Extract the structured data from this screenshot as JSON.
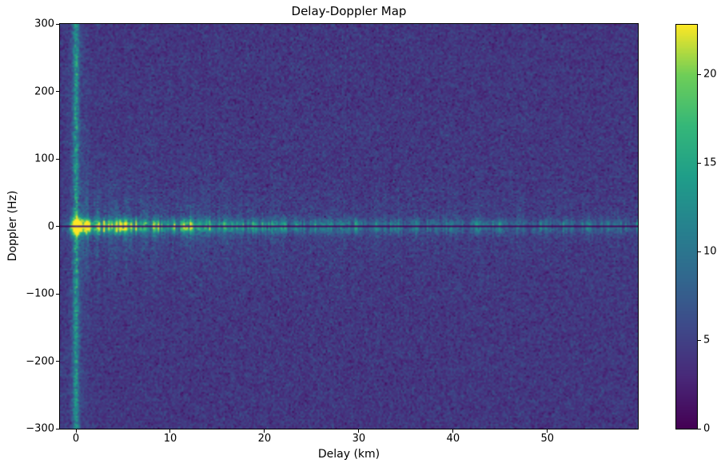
{
  "chart_data": {
    "type": "heatmap",
    "title": "Delay-Doppler Map",
    "xlabel": "Delay (km)",
    "ylabel": "Doppler (Hz)",
    "x_range": [
      -1.7,
      59.6
    ],
    "y_range": [
      -300,
      300
    ],
    "x_ticks": [
      0,
      10,
      20,
      30,
      40,
      50
    ],
    "y_ticks": [
      300,
      200,
      100,
      0,
      -100,
      -200,
      -300
    ],
    "grid": false,
    "colormap": "viridis",
    "viridis_stops": [
      "#440154",
      "#482878",
      "#3e4989",
      "#31688e",
      "#26828e",
      "#1f9e89",
      "#35b779",
      "#6ece58",
      "#fde725"
    ],
    "vmin": 0,
    "vmax": 22.8,
    "colorbar_ticks": [
      0,
      5,
      10,
      15,
      20
    ],
    "resolution": {
      "nx": 361,
      "ny": 253
    },
    "seed": 7,
    "background_noise": {
      "mean": 4.2,
      "std": 1.15
    },
    "features": {
      "specular_peak": {
        "delay_km": 0,
        "doppler_hz": 0,
        "value": 22.8,
        "delay_sigma_km": 0.45,
        "doppler_sigma_hz": 9
      },
      "zero_delay_ridge": {
        "delay_km": 0,
        "sigma_km": 0.22,
        "amplitude": 7.5,
        "skirt_sigma_km": 0.8,
        "skirt_amplitude": 1.3
      },
      "zero_doppler_band": {
        "doppler_sigma_hz": 7,
        "amplitude_at_zero_delay": 13,
        "decay_km": 9,
        "far_amplitude": 4.5
      },
      "doppler_notch": {
        "doppler_hz": 0,
        "half_width_hz": 1.9,
        "attenuation": 0.06
      },
      "vertical_streak": {
        "doppler_scale_hz": 45,
        "band_fraction": 0.15,
        "echo_fraction": 0.25
      },
      "echoes_km_amp": [
        [
          1.2,
          7.0
        ],
        [
          2.2,
          6.5
        ],
        [
          3.2,
          5.0
        ],
        [
          4.1,
          4.5
        ],
        [
          5.1,
          8.0
        ],
        [
          6.0,
          5.5
        ],
        [
          7.3,
          4.5
        ],
        [
          8.4,
          4.0
        ],
        [
          9.5,
          3.5
        ],
        [
          10.2,
          4.5
        ],
        [
          11.6,
          7.5
        ],
        [
          12.3,
          6.0
        ],
        [
          13.2,
          5.0
        ],
        [
          14.1,
          4.0
        ],
        [
          15.4,
          3.5
        ],
        [
          16.3,
          4.0
        ],
        [
          17.4,
          3.8
        ],
        [
          18.7,
          3.2
        ],
        [
          19.8,
          3.0
        ],
        [
          21.0,
          5.0
        ],
        [
          21.9,
          4.5
        ],
        [
          23.4,
          3.2
        ],
        [
          25.3,
          3.0
        ],
        [
          26.9,
          4.0
        ],
        [
          28.1,
          3.5
        ],
        [
          29.9,
          3.0
        ],
        [
          31.8,
          2.8
        ],
        [
          34.2,
          3.2
        ],
        [
          36.1,
          2.6
        ],
        [
          38.2,
          3.0
        ],
        [
          40.4,
          2.5
        ],
        [
          42.8,
          3.0
        ],
        [
          45.0,
          2.6
        ],
        [
          46.9,
          3.0
        ],
        [
          49.5,
          2.2
        ],
        [
          52.1,
          2.5
        ],
        [
          54.7,
          2.2
        ],
        [
          57.2,
          2.4
        ]
      ]
    }
  }
}
